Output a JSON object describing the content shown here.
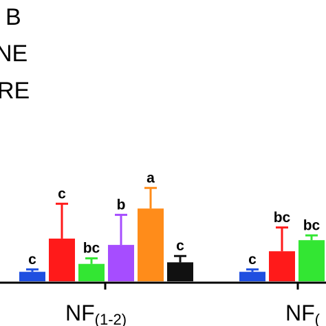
{
  "chart_data": {
    "type": "bar",
    "title": "",
    "xlabel": "",
    "ylabel": "",
    "legend_fragments": [
      "B",
      "NE",
      "RE"
    ],
    "legend_placement": "top-left",
    "categories": [
      {
        "main": "NF",
        "sub": "(1-2)"
      },
      {
        "main": "NF",
        "sub": "("
      }
    ],
    "series": [
      {
        "color": "#1f4fe0",
        "values": [
          6,
          6
        ],
        "errors": [
          1.5,
          1.5
        ],
        "labels": [
          "c",
          "c"
        ]
      },
      {
        "color": "#ff1a1a",
        "values": [
          27,
          19
        ],
        "errors": [
          22,
          15
        ],
        "labels": [
          "c",
          "bc"
        ]
      },
      {
        "color": "#33e633",
        "values": [
          11,
          26
        ],
        "errors": [
          3.5,
          3
        ],
        "labels": [
          "bc",
          "bc"
        ]
      },
      {
        "color": "#a64dff",
        "values": [
          23,
          null
        ],
        "errors": [
          19,
          null
        ],
        "labels": [
          "b",
          ""
        ]
      },
      {
        "color": "#ff8c1a",
        "values": [
          46,
          null
        ],
        "errors": [
          13,
          null
        ],
        "labels": [
          "a",
          ""
        ]
      },
      {
        "color": "#111111",
        "values": [
          12,
          null
        ],
        "errors": [
          4,
          null
        ],
        "labels": [
          "c",
          ""
        ]
      }
    ],
    "ylim": [
      0,
      100
    ],
    "grid": false
  }
}
